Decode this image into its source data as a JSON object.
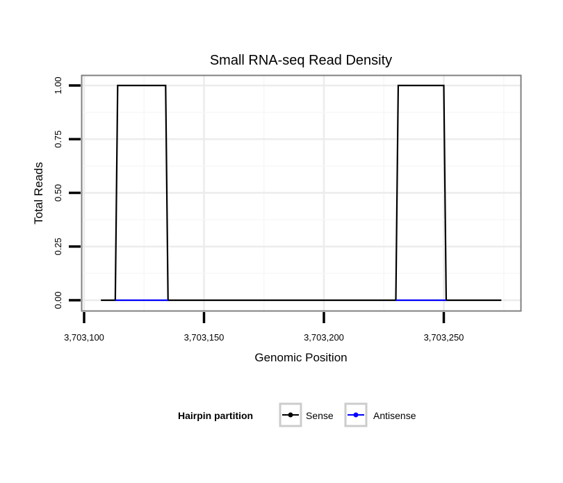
{
  "chart_data": {
    "type": "line",
    "title": "Small RNA-seq Read Density",
    "xlabel": "Genomic Position",
    "ylabel": "Total Reads",
    "xlim": [
      3703099,
      3703283
    ],
    "ylim": [
      -0.05,
      1.05
    ],
    "x_ticks": [
      3703100,
      3703150,
      3703200,
      3703250
    ],
    "x_tick_labels": [
      "3,703,100",
      "3,703,150",
      "3,703,200",
      "3,703,250"
    ],
    "y_ticks": [
      0,
      0.25,
      0.5,
      0.75,
      1.0
    ],
    "y_tick_labels": [
      "0.00",
      "0.25",
      "0.50",
      "0.75",
      "1.00"
    ],
    "grid": true,
    "legend": {
      "title": "Hairpin partition",
      "position": "bottom"
    },
    "series": [
      {
        "name": "Sense",
        "color": "#000000",
        "x": [
          3703107,
          3703113,
          3703114,
          3703134,
          3703135,
          3703230,
          3703231,
          3703250,
          3703251,
          3703274
        ],
        "y": [
          0,
          0,
          1,
          1,
          0,
          0,
          1,
          1,
          0,
          0
        ]
      },
      {
        "name": "Antisense",
        "color": "#0000ff",
        "segments": [
          {
            "x": [
              3703113,
              3703135
            ],
            "y": [
              0,
              0
            ]
          },
          {
            "x": [
              3703230,
              3703251
            ],
            "y": [
              0,
              0
            ]
          }
        ]
      }
    ]
  }
}
